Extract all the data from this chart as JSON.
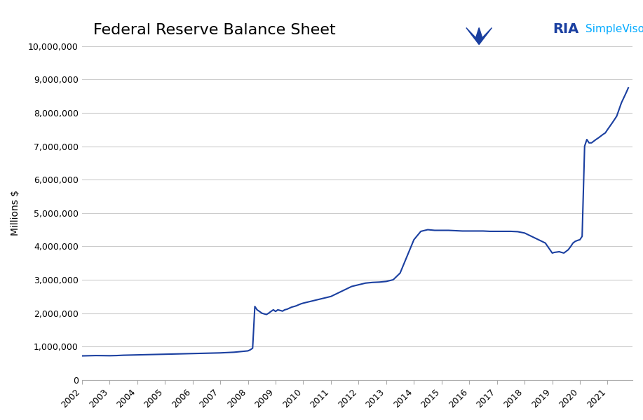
{
  "title": "Federal Reserve Balance Sheet",
  "ylabel": "Millions $",
  "line_color": "#1a3fa0",
  "line_width": 1.5,
  "background_color": "#ffffff",
  "grid_color": "#cccccc",
  "ylim": [
    0,
    10000000
  ],
  "yticks": [
    0,
    1000000,
    2000000,
    3000000,
    4000000,
    5000000,
    6000000,
    7000000,
    8000000,
    9000000,
    10000000
  ],
  "ytick_labels": [
    "0",
    "1,000,000",
    "2,000,000",
    "3,000,000",
    "4,000,000",
    "5,000,000",
    "6,000,000",
    "7,000,000",
    "8,000,000",
    "9,000,000",
    "10,000,000"
  ],
  "xtick_labels": [
    "2002",
    "2003",
    "2004",
    "2005",
    "2006",
    "2007",
    "2008",
    "2009",
    "2010",
    "2011",
    "2012",
    "2013",
    "2014",
    "2015",
    "2016",
    "2017",
    "2018",
    "2019",
    "2020",
    "2021"
  ],
  "data": {
    "years": [
      2002.0,
      2002.25,
      2002.5,
      2002.75,
      2003.0,
      2003.25,
      2003.5,
      2003.75,
      2004.0,
      2004.25,
      2004.5,
      2004.75,
      2005.0,
      2005.25,
      2005.5,
      2005.75,
      2006.0,
      2006.25,
      2006.5,
      2006.75,
      2007.0,
      2007.25,
      2007.5,
      2007.75,
      2008.0,
      2008.08,
      2008.17,
      2008.25,
      2008.33,
      2008.42,
      2008.5,
      2008.58,
      2008.67,
      2008.75,
      2008.83,
      2008.92,
      2009.0,
      2009.08,
      2009.17,
      2009.25,
      2009.33,
      2009.42,
      2009.5,
      2009.58,
      2009.67,
      2009.75,
      2009.83,
      2009.92,
      2010.0,
      2010.25,
      2010.5,
      2010.75,
      2011.0,
      2011.25,
      2011.5,
      2011.75,
      2012.0,
      2012.25,
      2012.5,
      2012.75,
      2013.0,
      2013.25,
      2013.5,
      2013.75,
      2014.0,
      2014.25,
      2014.5,
      2014.75,
      2015.0,
      2015.25,
      2015.5,
      2015.75,
      2016.0,
      2016.25,
      2016.5,
      2016.75,
      2017.0,
      2017.25,
      2017.5,
      2017.75,
      2018.0,
      2018.25,
      2018.5,
      2018.75,
      2019.0,
      2019.08,
      2019.17,
      2019.25,
      2019.33,
      2019.42,
      2019.5,
      2019.58,
      2019.67,
      2019.75,
      2019.83,
      2019.92,
      2020.0,
      2020.08,
      2020.17,
      2020.25,
      2020.33,
      2020.42,
      2020.5,
      2020.58,
      2020.67,
      2020.75,
      2020.83,
      2020.92,
      2021.0,
      2021.17,
      2021.33,
      2021.5,
      2021.67,
      2021.75
    ],
    "values": [
      720000,
      725000,
      730000,
      728000,
      725000,
      730000,
      740000,
      745000,
      750000,
      755000,
      760000,
      765000,
      770000,
      775000,
      780000,
      785000,
      790000,
      795000,
      800000,
      805000,
      810000,
      820000,
      830000,
      850000,
      870000,
      900000,
      950000,
      2200000,
      2100000,
      2050000,
      2000000,
      1980000,
      1960000,
      2000000,
      2050000,
      2100000,
      2050000,
      2100000,
      2080000,
      2060000,
      2100000,
      2120000,
      2150000,
      2180000,
      2200000,
      2220000,
      2250000,
      2280000,
      2300000,
      2350000,
      2400000,
      2450000,
      2500000,
      2600000,
      2700000,
      2800000,
      2850000,
      2900000,
      2920000,
      2930000,
      2950000,
      3000000,
      3200000,
      3700000,
      4200000,
      4450000,
      4500000,
      4480000,
      4480000,
      4480000,
      4470000,
      4460000,
      4460000,
      4460000,
      4460000,
      4450000,
      4450000,
      4450000,
      4450000,
      4440000,
      4400000,
      4300000,
      4200000,
      4100000,
      3800000,
      3820000,
      3830000,
      3840000,
      3820000,
      3800000,
      3850000,
      3900000,
      4000000,
      4100000,
      4150000,
      4180000,
      4200000,
      4300000,
      7000000,
      7200000,
      7100000,
      7100000,
      7150000,
      7200000,
      7250000,
      7300000,
      7350000,
      7400000,
      7500000,
      7700000,
      7900000,
      8300000,
      8600000,
      8750000
    ]
  }
}
